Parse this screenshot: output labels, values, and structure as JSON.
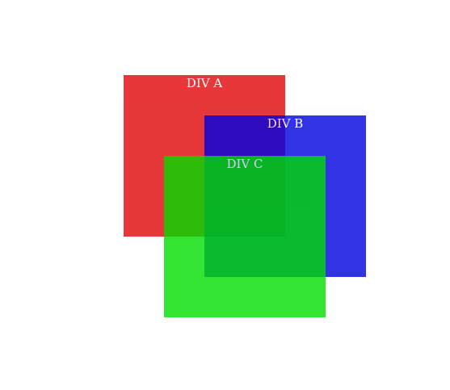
{
  "boxes": [
    {
      "label": "DIV A",
      "color": "#e41a1c",
      "opacity": 0.87
    },
    {
      "label": "DIV B",
      "color": "#0000e0",
      "opacity": 0.8
    },
    {
      "label": "DIV C",
      "color": "#00dd00",
      "opacity": 0.8
    }
  ]
}
